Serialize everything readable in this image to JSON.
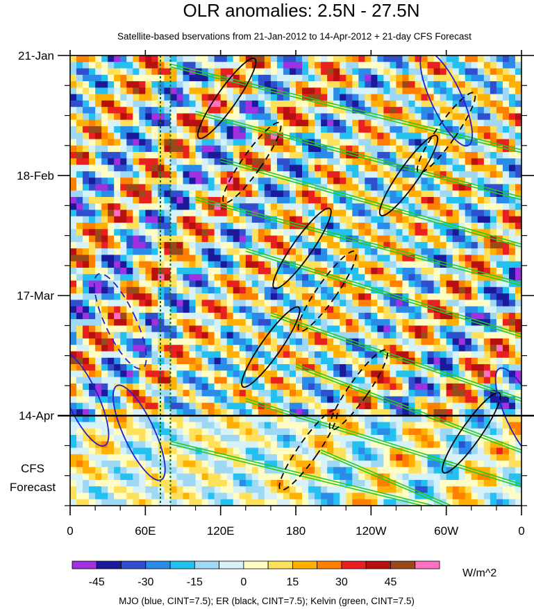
{
  "chart_data": {
    "type": "heatmap",
    "title": "OLR anomalies: 2.5N - 27.5N",
    "subtitle": "Satellite-based bservations from 21-Jan-2012 to 14-Apr-2012 + 21-day CFS Forecast",
    "x_ticks": [
      "0",
      "60E",
      "120E",
      "180",
      "120W",
      "60W",
      "0"
    ],
    "x_tick_values": [
      0,
      60,
      120,
      180,
      240,
      300,
      360
    ],
    "xlim": [
      0,
      360
    ],
    "y_ticks": [
      "21-Jan",
      "18-Feb",
      "17-Mar",
      "14-Apr"
    ],
    "y_tick_days": [
      0,
      28,
      56,
      84
    ],
    "ylim_days": [
      0,
      105
    ],
    "forecast_start_day": 84,
    "forecast_label": [
      "CFS",
      "Forecast"
    ],
    "reference_lines_lon": [
      72,
      80
    ],
    "colorbar": {
      "unit": "W/m^2",
      "labels": [
        "-45",
        "-30",
        "-15",
        "0",
        "15",
        "30",
        "45"
      ],
      "label_values": [
        -45,
        -30,
        -15,
        0,
        15,
        30,
        45
      ],
      "colors": [
        "#a030e0",
        "#1a1a9a",
        "#2f4fcf",
        "#2b8be8",
        "#23c0f0",
        "#9ed8f5",
        "#d6f2f8",
        "#fffcc4",
        "#ffe05a",
        "#ffb000",
        "#ff8000",
        "#e82020",
        "#b81010",
        "#9a4a1a",
        "#ff70c0"
      ]
    },
    "contour_legend": "MJO (blue, CINT=7.5); ER (black, CINT=7.5); Kelvin (green, CINT=7.5)",
    "contour_colors": {
      "mjo": "#2020cc",
      "er": "#000000",
      "kelvin": "#22cc22"
    }
  }
}
